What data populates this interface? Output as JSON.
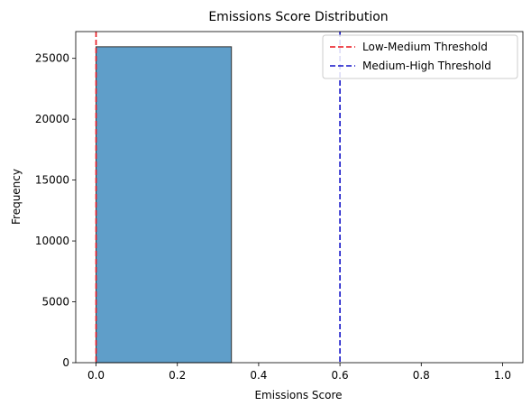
{
  "chart_data": {
    "type": "bar",
    "title": "Emissions Score Distribution",
    "xlabel": "Emissions Score",
    "ylabel": "Frequency",
    "xlim": [
      -0.05,
      1.05
    ],
    "ylim": [
      0,
      27200
    ],
    "xticks": [
      0.0,
      0.2,
      0.4,
      0.6,
      0.8,
      1.0
    ],
    "xtick_labels": [
      "0.0",
      "0.2",
      "0.4",
      "0.6",
      "0.8",
      "1.0"
    ],
    "yticks": [
      0,
      5000,
      10000,
      15000,
      20000,
      25000
    ],
    "ytick_labels": [
      "0",
      "5000",
      "10000",
      "15000",
      "20000",
      "25000"
    ],
    "bins": [
      {
        "start": 0.0,
        "end": 0.333,
        "count": 25950
      },
      {
        "start": 0.333,
        "end": 0.667,
        "count": 0
      },
      {
        "start": 0.667,
        "end": 1.0,
        "count": 0
      }
    ],
    "bar_color": "#5f9ec9",
    "bar_edge_color": "#333333",
    "thresholds": [
      {
        "name": "Low-Medium Threshold",
        "x": 0.0,
        "color": "#e8141c",
        "style": "dashed"
      },
      {
        "name": "Medium-High Threshold",
        "x": 0.6,
        "color": "#1414c8",
        "style": "dashed"
      }
    ],
    "legend_position": "top-right",
    "grid": false
  }
}
